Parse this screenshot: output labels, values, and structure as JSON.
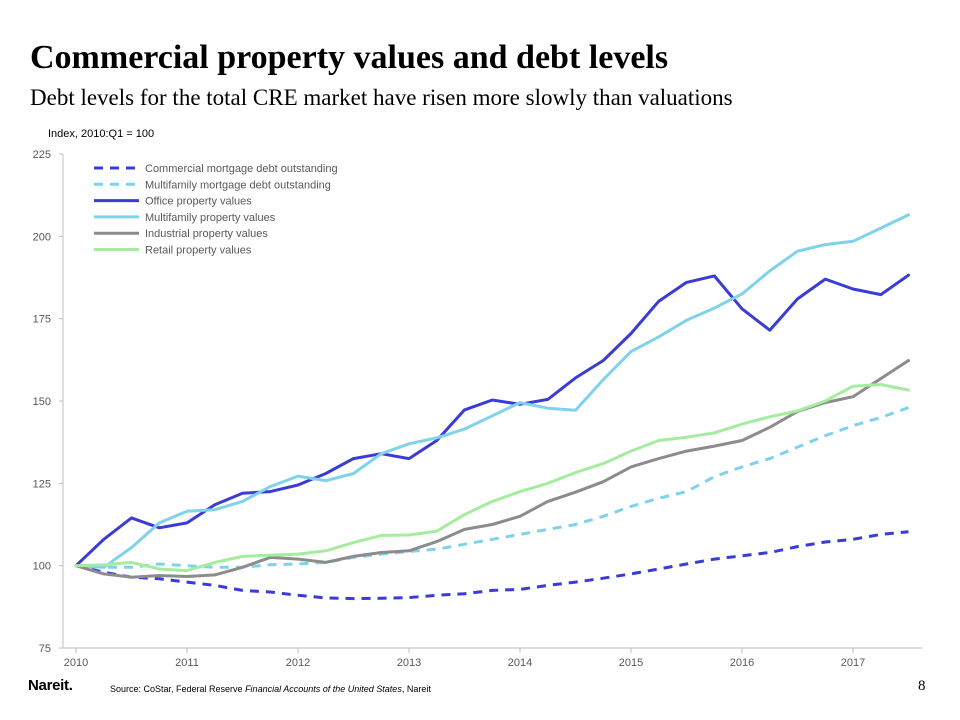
{
  "header": {
    "title": "Commercial property values and debt levels",
    "subtitle": "Debt levels for the total CRE market have risen more slowly than valuations"
  },
  "footer": {
    "logo_text": "Nareit.",
    "source_prefix": "Source: CoStar, Federal Reserve ",
    "source_italic": "Financial Accounts of the United States",
    "source_suffix": ", Nareit",
    "page_number": "8"
  },
  "chart_data": {
    "type": "line",
    "ylabel": "Index, 2010:Q1 = 100",
    "xlabel": "",
    "ylim": [
      75,
      225
    ],
    "yticks": [
      75,
      100,
      125,
      150,
      175,
      200,
      225
    ],
    "xticks": [
      "2010",
      "2011",
      "2012",
      "2013",
      "2014",
      "2015",
      "2016",
      "2017"
    ],
    "x_unit": "quarter",
    "x": [
      "2010:Q1",
      "2010:Q2",
      "2010:Q3",
      "2010:Q4",
      "2011:Q1",
      "2011:Q2",
      "2011:Q3",
      "2011:Q4",
      "2012:Q1",
      "2012:Q2",
      "2012:Q3",
      "2012:Q4",
      "2013:Q1",
      "2013:Q2",
      "2013:Q3",
      "2013:Q4",
      "2014:Q1",
      "2014:Q2",
      "2014:Q3",
      "2014:Q4",
      "2015:Q1",
      "2015:Q2",
      "2015:Q3",
      "2015:Q4",
      "2016:Q1",
      "2016:Q2",
      "2016:Q3",
      "2016:Q4",
      "2017:Q1",
      "2017:Q2",
      "2017:Q3"
    ],
    "grid": false,
    "legend_position": "top-left",
    "series": [
      {
        "name": "Commercial mortgage debt outstanding",
        "color": "#3b3bd6",
        "dash": true,
        "values": [
          100,
          98,
          96.5,
          96,
          95,
          94,
          92.5,
          92,
          91,
          90.2,
          90,
          90.1,
          90.3,
          91,
          91.5,
          92.5,
          92.8,
          94,
          95,
          96.2,
          97.5,
          99,
          100.5,
          102,
          103,
          104,
          105.8,
          107.2,
          108,
          109.5,
          110.3
        ]
      },
      {
        "name": "Multifamily mortgage debt outstanding",
        "color": "#7ed3ea",
        "dash": true,
        "values": [
          100,
          99.5,
          99.5,
          100.5,
          100,
          99.5,
          99.5,
          100.3,
          100.5,
          101,
          102.5,
          103.5,
          104.3,
          105,
          106.5,
          108,
          109.5,
          111,
          112.5,
          115,
          118,
          120.5,
          122.5,
          127,
          130,
          132.5,
          136,
          139.5,
          142.5,
          145,
          148
        ]
      },
      {
        "name": "Office property values",
        "color": "#3b3bd6",
        "dash": false,
        "values": [
          100,
          108,
          114.5,
          111.5,
          113,
          118.5,
          122,
          122.5,
          124.5,
          128,
          132.5,
          134,
          132.5,
          138,
          147.3,
          150.3,
          149,
          150.5,
          157,
          162.3,
          170.5,
          180.3,
          186,
          188,
          178,
          171.5,
          181,
          187,
          184,
          182.3,
          188.2
        ]
      },
      {
        "name": "Multifamily property values",
        "color": "#7ed3ea",
        "dash": false,
        "values": [
          100,
          99.5,
          105.5,
          113,
          116.5,
          117,
          119.5,
          124,
          127.2,
          125.8,
          128,
          134,
          137,
          138.8,
          141.5,
          145.5,
          149.5,
          147.8,
          147.2,
          156.5,
          165,
          169.5,
          174.5,
          178.2,
          182.5,
          189.5,
          195.5,
          197.5,
          198.5,
          202.5,
          206.5
        ]
      },
      {
        "name": "Industrial property values",
        "color": "#8c8c8c",
        "dash": false,
        "values": [
          100,
          97.5,
          96.5,
          97,
          96.7,
          97.2,
          99.5,
          102.5,
          102,
          101,
          102.8,
          104,
          104.5,
          107.3,
          111,
          112.5,
          115,
          119.5,
          122.3,
          125.5,
          130,
          132.5,
          134.8,
          136.3,
          138,
          142,
          146.8,
          149.5,
          151.3,
          156.8,
          162.3
        ]
      },
      {
        "name": "Retail property values",
        "color": "#a6ec9f",
        "dash": false,
        "values": [
          100,
          100.3,
          101,
          99,
          98.5,
          101,
          102.8,
          103.2,
          103.5,
          104.5,
          107,
          109.2,
          109.3,
          110.5,
          115.5,
          119.5,
          122.5,
          125,
          128.3,
          131,
          134.8,
          138,
          139,
          140.3,
          143,
          145.2,
          147,
          150,
          154.5,
          155,
          153.3
        ]
      }
    ]
  }
}
